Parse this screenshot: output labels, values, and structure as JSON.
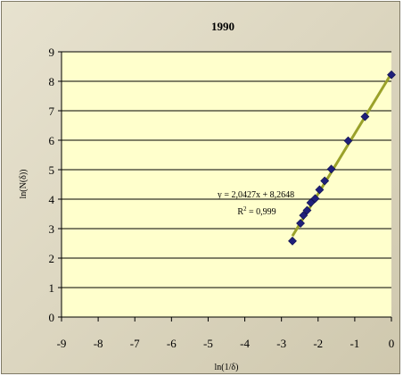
{
  "chart_data": {
    "type": "scatter",
    "title": "1990",
    "xlabel": "ln(1/δ)",
    "ylabel": "ln(N(δ))",
    "xlim": [
      -9,
      0
    ],
    "ylim": [
      0,
      9
    ],
    "x_ticks": [
      "-9",
      "-8",
      "-7",
      "-6",
      "-5",
      "-4",
      "-3",
      "-2",
      "-1",
      "0"
    ],
    "y_ticks": [
      "0",
      "1",
      "2",
      "3",
      "4",
      "5",
      "6",
      "7",
      "8",
      "9"
    ],
    "grid": "horizontal",
    "series": [
      {
        "x": [
          -2.7,
          -2.48,
          -2.4,
          -2.3,
          -2.2,
          -2.08,
          -1.96,
          -1.82,
          -1.64,
          -1.18,
          -0.72,
          0.0
        ],
        "y": [
          2.58,
          3.18,
          3.45,
          3.62,
          3.88,
          4.02,
          4.32,
          4.62,
          5.02,
          5.98,
          6.8,
          8.22
        ],
        "marker_color": "#1f1f7a"
      }
    ],
    "trendline": {
      "slope": 2.0427,
      "intercept": 8.2648,
      "x_range": [
        -2.7,
        0.0
      ],
      "color": "#9aa12a"
    },
    "annotations": {
      "equation": "y = 2,0427x + 8,2648",
      "r_squared_prefix": "R",
      "r_squared_sup": "2",
      "r_squared_value": " = 0,999"
    },
    "colors": {
      "plot_background": "#ffffcc",
      "gridline": "#000000",
      "frame_background": "#ddd7c1"
    }
  }
}
